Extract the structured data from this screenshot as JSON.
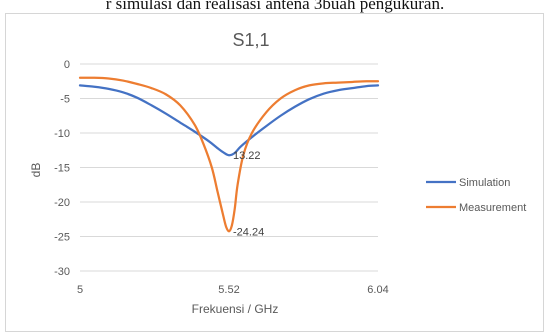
{
  "caption": "r simulasi dan realisasi antena 3buah pengukuran.",
  "colors": {
    "simulation": "#4472c4",
    "measurement": "#ed7d31",
    "grid": "#d9d9d9",
    "text": "#595959"
  },
  "chart_data": {
    "type": "line",
    "title": "S1,1",
    "xlabel": "Frekuensi / GHz",
    "ylabel": "dB",
    "xlim": [
      5,
      6.04
    ],
    "ylim": [
      -30,
      0
    ],
    "xticks": [
      {
        "v": 5,
        "label": "5"
      },
      {
        "v": 5.52,
        "label": "5.52"
      },
      {
        "v": 6.04,
        "label": "6.04"
      }
    ],
    "yticks": [
      {
        "v": 0,
        "label": "0"
      },
      {
        "v": -5,
        "label": "-5"
      },
      {
        "v": -10,
        "label": "-10"
      },
      {
        "v": -15,
        "label": "-15"
      },
      {
        "v": -20,
        "label": "-20"
      },
      {
        "v": -25,
        "label": "-25"
      },
      {
        "v": -30,
        "label": "-30"
      }
    ],
    "grid": "horizontal",
    "legend_position": "right",
    "series": [
      {
        "name": "Simulation",
        "color": "#4472c4",
        "x": [
          5.0,
          5.05,
          5.1,
          5.15,
          5.2,
          5.25,
          5.3,
          5.35,
          5.4,
          5.45,
          5.48,
          5.5,
          5.52,
          5.54,
          5.56,
          5.6,
          5.65,
          5.7,
          5.75,
          5.8,
          5.85,
          5.9,
          5.95,
          6.0,
          6.04
        ],
        "y": [
          -3.1,
          -3.3,
          -3.6,
          -4.1,
          -4.9,
          -6.0,
          -7.2,
          -8.5,
          -9.8,
          -11.2,
          -12.2,
          -12.8,
          -13.22,
          -12.9,
          -12.0,
          -10.6,
          -9.0,
          -7.5,
          -6.2,
          -5.1,
          -4.3,
          -3.8,
          -3.5,
          -3.2,
          -3.1
        ]
      },
      {
        "name": "Measurement",
        "color": "#ed7d31",
        "x": [
          5.0,
          5.05,
          5.1,
          5.15,
          5.2,
          5.25,
          5.3,
          5.35,
          5.4,
          5.43,
          5.46,
          5.48,
          5.5,
          5.51,
          5.52,
          5.53,
          5.54,
          5.55,
          5.57,
          5.6,
          5.65,
          5.7,
          5.75,
          5.8,
          5.85,
          5.9,
          5.95,
          6.0,
          6.04
        ],
        "y": [
          -2.0,
          -2.0,
          -2.1,
          -2.4,
          -2.9,
          -3.5,
          -4.4,
          -6.0,
          -8.8,
          -11.5,
          -15.0,
          -18.5,
          -22.0,
          -23.6,
          -24.24,
          -23.4,
          -21.0,
          -17.5,
          -13.2,
          -10.0,
          -7.0,
          -5.0,
          -3.8,
          -3.1,
          -2.8,
          -2.7,
          -2.6,
          -2.5,
          -2.5
        ]
      }
    ],
    "annotations": [
      {
        "series": "Simulation",
        "x": 5.52,
        "y": -13.22,
        "text": "13.22"
      },
      {
        "series": "Measurement",
        "x": 5.52,
        "y": -24.24,
        "text": "-24.24"
      }
    ]
  }
}
